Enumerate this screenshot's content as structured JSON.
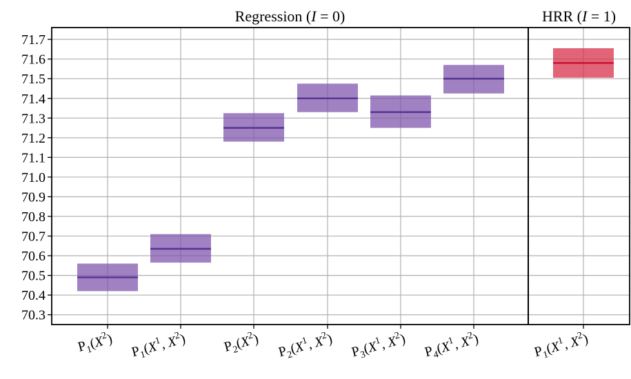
{
  "chart_data": {
    "type": "box",
    "ylim": [
      70.25,
      71.76
    ],
    "yticks": [
      "70.3",
      "70.4",
      "70.5",
      "70.6",
      "70.7",
      "70.8",
      "70.9",
      "71.0",
      "71.1",
      "71.2",
      "71.3",
      "71.4",
      "71.5",
      "71.6",
      "71.7"
    ],
    "grid": true,
    "panels": [
      {
        "title_text": "Regression (",
        "title_var": "I",
        "title_rest": " = 0)",
        "color": "#7b52ab",
        "median_color": "#5a3592",
        "items": [
          {
            "label_parts": [
              "P",
              "1",
              "(X",
              "2",
              ")"
            ],
            "low": 70.42,
            "median": 70.49,
            "high": 70.56
          },
          {
            "label_parts": [
              "P",
              "1",
              "(X",
              "1",
              ", X",
              "2",
              ")"
            ],
            "low": 70.565,
            "median": 70.635,
            "high": 70.71
          },
          {
            "label_parts": [
              "P",
              "2",
              "(X",
              "2",
              ")"
            ],
            "low": 71.18,
            "median": 71.25,
            "high": 71.325
          },
          {
            "label_parts": [
              "P",
              "2",
              "(X",
              "1",
              ", X",
              "2",
              ")"
            ],
            "low": 71.33,
            "median": 71.4,
            "high": 71.475
          },
          {
            "label_parts": [
              "P",
              "3",
              "(X",
              "1",
              ", X",
              "2",
              ")"
            ],
            "low": 71.25,
            "median": 71.33,
            "high": 71.415
          },
          {
            "label_parts": [
              "P",
              "4",
              "(X",
              "1",
              ", X",
              "2",
              ")"
            ],
            "low": 71.425,
            "median": 71.5,
            "high": 71.57
          }
        ]
      },
      {
        "title_text": "HRR (",
        "title_var": "I",
        "title_rest": " = 1)",
        "color": "#d7304b",
        "median_color": "#c8102e",
        "items": [
          {
            "label_parts": [
              "P",
              "1",
              "(X",
              "1",
              ", X",
              "2",
              ")"
            ],
            "low": 71.505,
            "median": 71.58,
            "high": 71.655
          }
        ]
      }
    ]
  }
}
